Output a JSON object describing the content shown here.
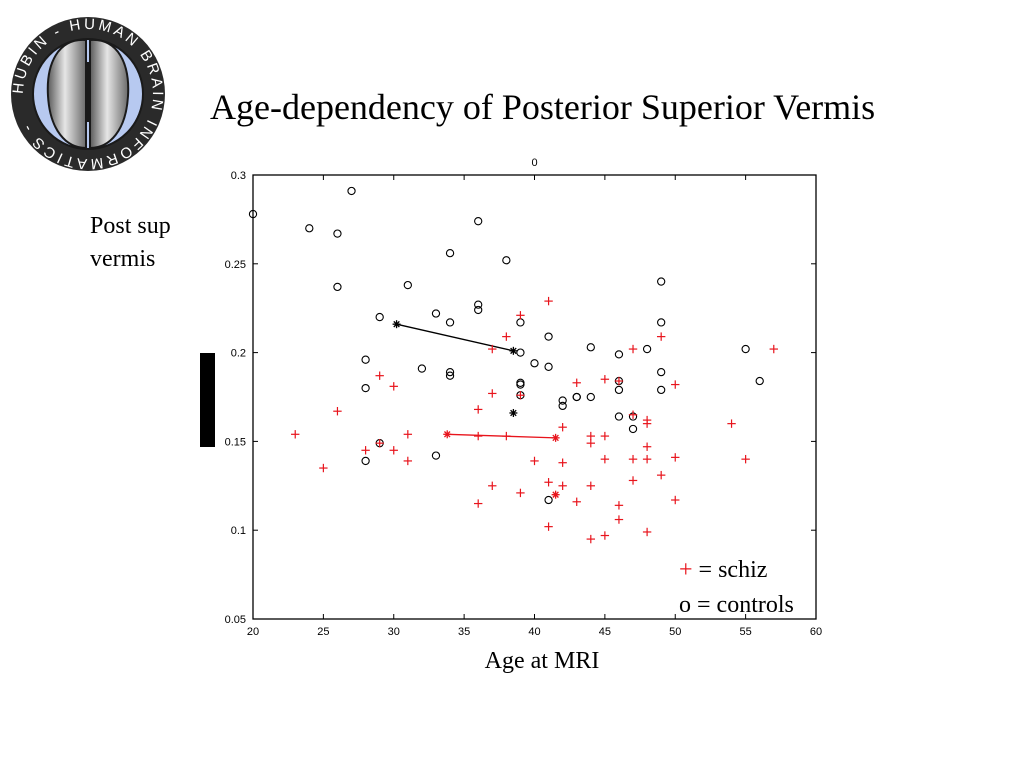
{
  "logo": {
    "text": "HUBIN - HUMAN BRAIN INFORMATICS -"
  },
  "slide": {
    "title": "Age-dependency of Posterior Superior Vermis",
    "side_label_line1": "Post sup",
    "side_label_line2": "vermis",
    "legend_schiz_symbol": "+",
    "legend_schiz_text": " = schiz",
    "legend_controls": "o = controls"
  },
  "colors": {
    "schiz": "#e8141c",
    "controls": "#000000"
  },
  "chart_data": {
    "type": "scatter",
    "title": "0",
    "xlabel": "Age at MRI",
    "ylabel": "Post sup vermis",
    "xlim": [
      20,
      60
    ],
    "ylim": [
      0.05,
      0.3
    ],
    "xticks": [
      20,
      25,
      30,
      35,
      40,
      45,
      50,
      55,
      60
    ],
    "yticks": [
      0.05,
      0.1,
      0.15,
      0.2,
      0.25,
      0.3
    ],
    "xtick_labels": [
      "20",
      "25",
      "30",
      "35",
      "40",
      "45",
      "50",
      "55",
      "60"
    ],
    "ytick_labels": [
      "0.05",
      "0.1",
      "0.15",
      "0.2",
      "0.25",
      "0.3"
    ],
    "legend_position": "bottom-right",
    "grid": false,
    "series": [
      {
        "name": "controls",
        "marker": "o",
        "color": "#000000",
        "points": [
          [
            20,
            0.278
          ],
          [
            24,
            0.27
          ],
          [
            26,
            0.267
          ],
          [
            26,
            0.237
          ],
          [
            27,
            0.291
          ],
          [
            28,
            0.196
          ],
          [
            28,
            0.18
          ],
          [
            28,
            0.139
          ],
          [
            29,
            0.22
          ],
          [
            29,
            0.149
          ],
          [
            31,
            0.238
          ],
          [
            32,
            0.191
          ],
          [
            33,
            0.222
          ],
          [
            33,
            0.142
          ],
          [
            34,
            0.256
          ],
          [
            34,
            0.217
          ],
          [
            34,
            0.189
          ],
          [
            34,
            0.187
          ],
          [
            36,
            0.274
          ],
          [
            36,
            0.227
          ],
          [
            36,
            0.224
          ],
          [
            38,
            0.252
          ],
          [
            39,
            0.217
          ],
          [
            39,
            0.2
          ],
          [
            39,
            0.183
          ],
          [
            39,
            0.182
          ],
          [
            39,
            0.176
          ],
          [
            40,
            0.194
          ],
          [
            41,
            0.209
          ],
          [
            41,
            0.192
          ],
          [
            41,
            0.117
          ],
          [
            42,
            0.173
          ],
          [
            42,
            0.17
          ],
          [
            43,
            0.175
          ],
          [
            43,
            0.175
          ],
          [
            44,
            0.203
          ],
          [
            44,
            0.175
          ],
          [
            46,
            0.199
          ],
          [
            46,
            0.184
          ],
          [
            46,
            0.179
          ],
          [
            46,
            0.164
          ],
          [
            47,
            0.164
          ],
          [
            47,
            0.157
          ],
          [
            48,
            0.202
          ],
          [
            49,
            0.24
          ],
          [
            49,
            0.217
          ],
          [
            49,
            0.189
          ],
          [
            49,
            0.179
          ],
          [
            55,
            0.202
          ],
          [
            56,
            0.184
          ]
        ]
      },
      {
        "name": "schiz",
        "marker": "+",
        "color": "#e8141c",
        "points": [
          [
            23,
            0.154
          ],
          [
            25,
            0.135
          ],
          [
            26,
            0.167
          ],
          [
            28,
            0.145
          ],
          [
            29,
            0.187
          ],
          [
            29,
            0.149
          ],
          [
            30,
            0.181
          ],
          [
            30,
            0.145
          ],
          [
            31,
            0.154
          ],
          [
            31,
            0.139
          ],
          [
            36,
            0.168
          ],
          [
            36,
            0.153
          ],
          [
            36,
            0.115
          ],
          [
            37,
            0.202
          ],
          [
            37,
            0.177
          ],
          [
            37,
            0.125
          ],
          [
            38,
            0.209
          ],
          [
            38,
            0.153
          ],
          [
            39,
            0.221
          ],
          [
            39,
            0.176
          ],
          [
            39,
            0.121
          ],
          [
            40,
            0.139
          ],
          [
            41,
            0.229
          ],
          [
            41,
            0.127
          ],
          [
            41,
            0.102
          ],
          [
            42,
            0.158
          ],
          [
            42,
            0.138
          ],
          [
            42,
            0.125
          ],
          [
            43,
            0.183
          ],
          [
            43,
            0.116
          ],
          [
            44,
            0.153
          ],
          [
            44,
            0.149
          ],
          [
            44,
            0.125
          ],
          [
            44,
            0.095
          ],
          [
            45,
            0.185
          ],
          [
            45,
            0.153
          ],
          [
            45,
            0.14
          ],
          [
            45,
            0.097
          ],
          [
            46,
            0.184
          ],
          [
            46,
            0.114
          ],
          [
            46,
            0.106
          ],
          [
            47,
            0.202
          ],
          [
            47,
            0.165
          ],
          [
            47,
            0.14
          ],
          [
            47,
            0.128
          ],
          [
            48,
            0.162
          ],
          [
            48,
            0.16
          ],
          [
            48,
            0.147
          ],
          [
            48,
            0.14
          ],
          [
            48,
            0.099
          ],
          [
            49,
            0.209
          ],
          [
            49,
            0.131
          ],
          [
            50,
            0.182
          ],
          [
            50,
            0.141
          ],
          [
            50,
            0.117
          ],
          [
            54,
            0.16
          ],
          [
            55,
            0.14
          ],
          [
            57,
            0.202
          ]
        ]
      }
    ],
    "trend_lines": [
      {
        "group": "controls",
        "color": "#000000",
        "from": [
          30.2,
          0.216
        ],
        "to": [
          38.5,
          0.201
        ]
      },
      {
        "group": "schiz",
        "color": "#e8141c",
        "from": [
          33.8,
          0.154
        ],
        "to": [
          41.5,
          0.152
        ]
      }
    ],
    "extra_markers": [
      {
        "group": "controls",
        "marker": "*",
        "color": "#000000",
        "point": [
          38.5,
          0.166
        ]
      },
      {
        "group": "schiz",
        "marker": "*",
        "color": "#e8141c",
        "point": [
          41.5,
          0.12
        ]
      }
    ]
  }
}
